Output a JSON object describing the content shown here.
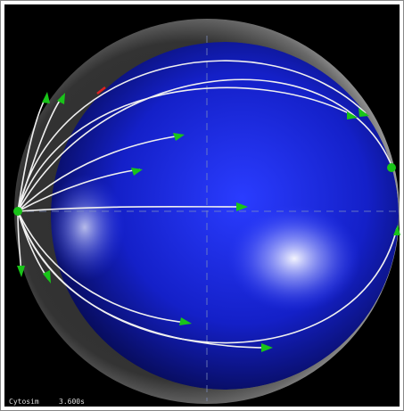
{
  "footer": {
    "app": "Cytosim",
    "time": "3.600s"
  }
}
